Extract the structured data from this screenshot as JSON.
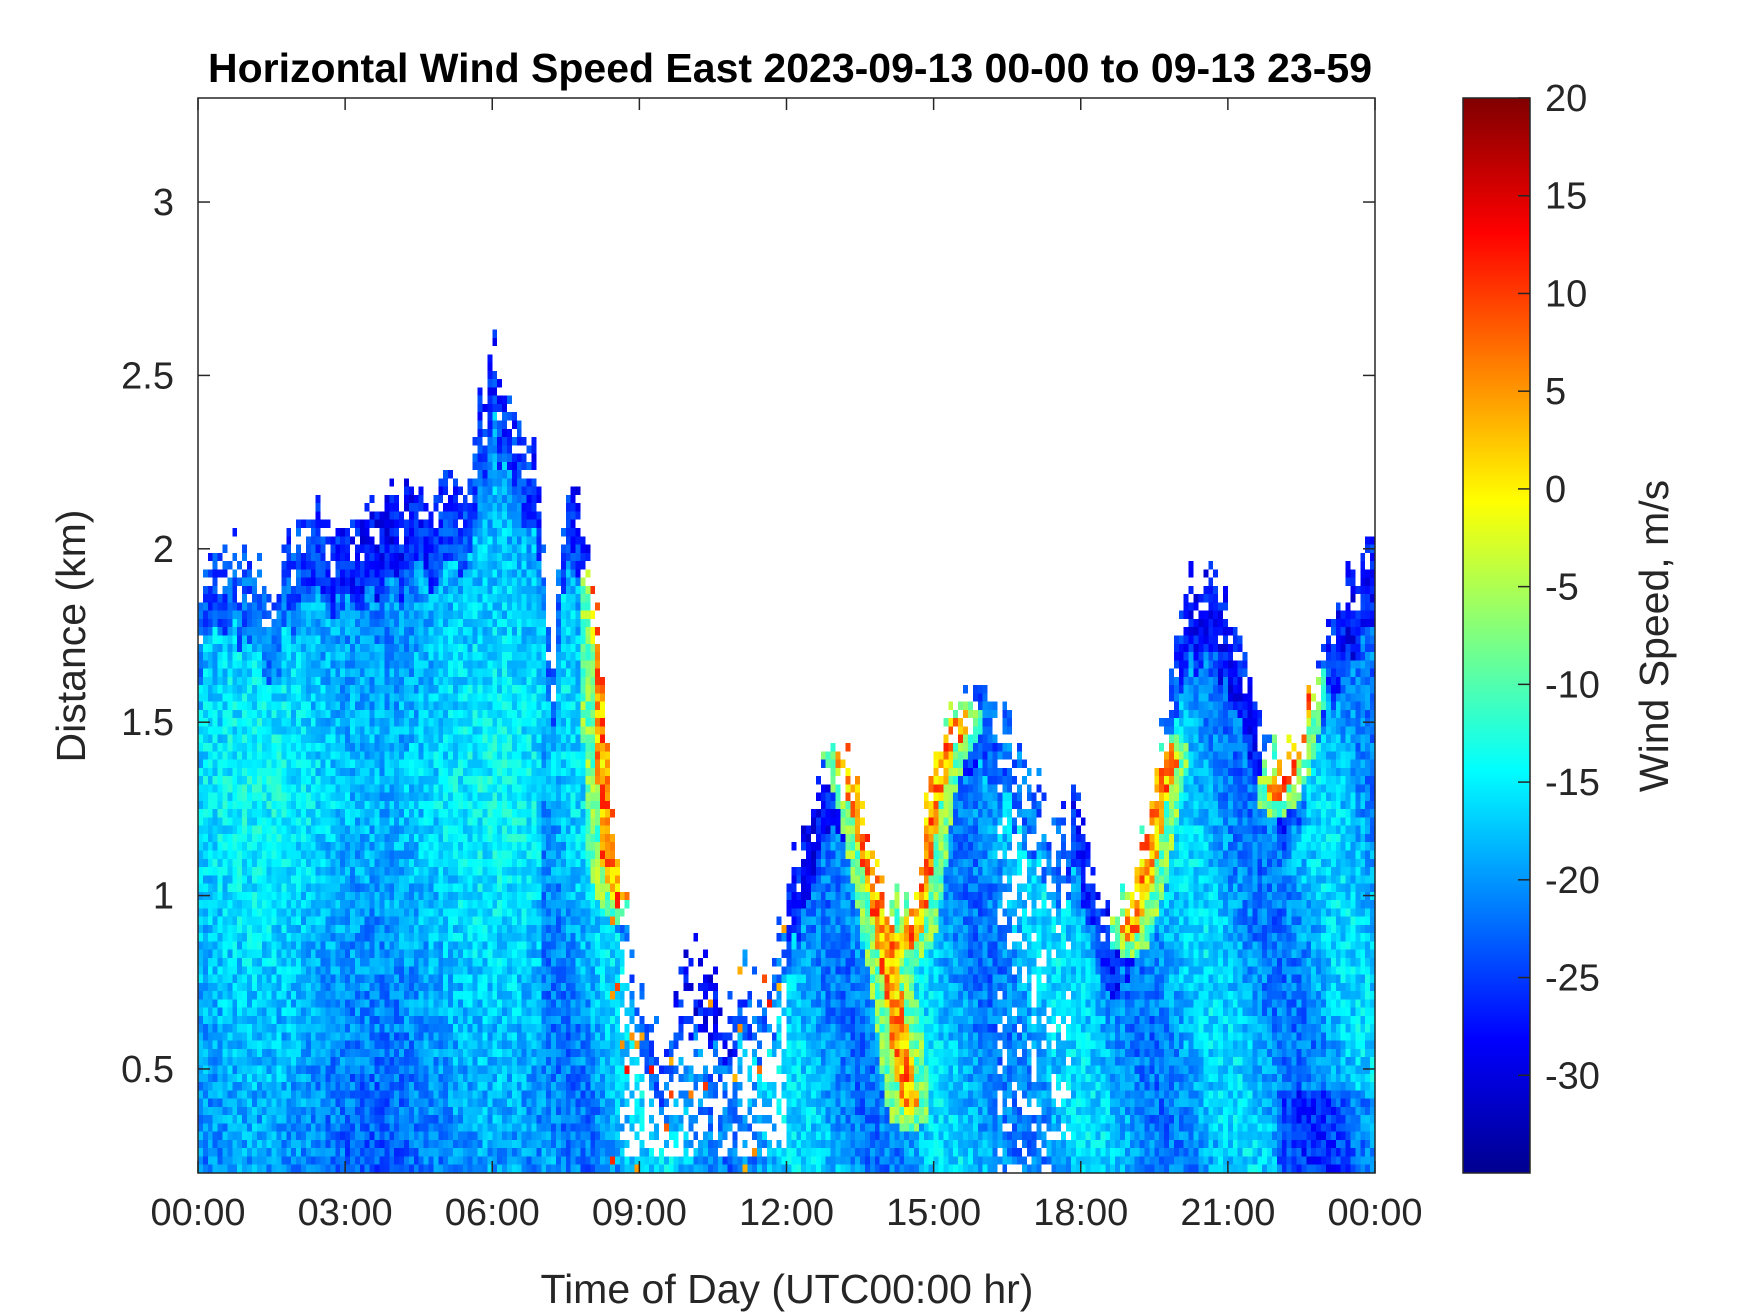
{
  "chart_data": {
    "type": "heatmap",
    "title": "Horizontal Wind Speed East 2023-09-13 00-00 to 09-13 23-59",
    "xlabel": "Time of Day (UTC00:00 hr)",
    "ylabel": "Distance (km)",
    "x_unit": "hour",
    "xlim": [
      0,
      24
    ],
    "ylim": [
      0.2,
      3.3
    ],
    "x_ticks": [
      {
        "value": 0,
        "label": "00:00"
      },
      {
        "value": 3,
        "label": "03:00"
      },
      {
        "value": 6,
        "label": "06:00"
      },
      {
        "value": 9,
        "label": "09:00"
      },
      {
        "value": 12,
        "label": "12:00"
      },
      {
        "value": 15,
        "label": "15:00"
      },
      {
        "value": 18,
        "label": "18:00"
      },
      {
        "value": 21,
        "label": "21:00"
      },
      {
        "value": 24,
        "label": "00:00"
      }
    ],
    "y_ticks": [
      {
        "value": 0.5,
        "label": "0.5"
      },
      {
        "value": 1,
        "label": "1"
      },
      {
        "value": 1.5,
        "label": "1.5"
      },
      {
        "value": 2,
        "label": "2"
      },
      {
        "value": 2.5,
        "label": "2.5"
      },
      {
        "value": 3,
        "label": "3"
      }
    ],
    "colorbar": {
      "label": "Wind Speed, m/s",
      "colormap": "jet",
      "clim": [
        -35,
        20
      ],
      "ticks": [
        20,
        15,
        10,
        5,
        0,
        -5,
        -10,
        -15,
        -20,
        -25,
        -30
      ],
      "tick_labels": [
        "20",
        "15",
        "10",
        "5",
        "0",
        "-5",
        "-10",
        "-15",
        "-20",
        "-25",
        "-30"
      ]
    },
    "grid": false,
    "missing_value_color": "#ffffff",
    "data_top_km_by_hour": [
      {
        "x": 0,
        "top": 1.9
      },
      {
        "x": 0.5,
        "top": 2.05
      },
      {
        "x": 1,
        "top": 2.0
      },
      {
        "x": 1.5,
        "top": 1.9
      },
      {
        "x": 2,
        "top": 2.05
      },
      {
        "x": 2.5,
        "top": 2.1
      },
      {
        "x": 3,
        "top": 2.1
      },
      {
        "x": 3.5,
        "top": 2.1
      },
      {
        "x": 4,
        "top": 2.15
      },
      {
        "x": 4.5,
        "top": 2.17
      },
      {
        "x": 5,
        "top": 2.17
      },
      {
        "x": 5.5,
        "top": 2.2
      },
      {
        "x": 6,
        "top": 2.6
      },
      {
        "x": 6.5,
        "top": 2.4
      },
      {
        "x": 7,
        "top": 2.2
      },
      {
        "x": 7.2,
        "top": 1.6
      },
      {
        "x": 7.5,
        "top": 2.3
      },
      {
        "x": 8,
        "top": 2.0
      },
      {
        "x": 8.3,
        "top": 1.6
      },
      {
        "x": 8.5,
        "top": 1.2
      },
      {
        "x": 9,
        "top": 0.8
      },
      {
        "x": 9.5,
        "top": 0.5
      },
      {
        "x": 10,
        "top": 0.9
      },
      {
        "x": 10.5,
        "top": 0.8
      },
      {
        "x": 11,
        "top": 0.8
      },
      {
        "x": 11.5,
        "top": 0.75
      },
      {
        "x": 12,
        "top": 1.0
      },
      {
        "x": 12.5,
        "top": 1.3
      },
      {
        "x": 13,
        "top": 1.5
      },
      {
        "x": 13.5,
        "top": 1.3
      },
      {
        "x": 14,
        "top": 1.0
      },
      {
        "x": 14.5,
        "top": 0.95
      },
      {
        "x": 15,
        "top": 1.4
      },
      {
        "x": 15.5,
        "top": 1.6
      },
      {
        "x": 16,
        "top": 1.6
      },
      {
        "x": 16.5,
        "top": 1.5
      },
      {
        "x": 17,
        "top": 1.4
      },
      {
        "x": 17.5,
        "top": 1.2
      },
      {
        "x": 18,
        "top": 1.3
      },
      {
        "x": 18.5,
        "top": 1.0
      },
      {
        "x": 19,
        "top": 1.0
      },
      {
        "x": 19.5,
        "top": 1.3
      },
      {
        "x": 20,
        "top": 1.85
      },
      {
        "x": 20.5,
        "top": 1.95
      },
      {
        "x": 21,
        "top": 1.85
      },
      {
        "x": 21.5,
        "top": 1.6
      },
      {
        "x": 22,
        "top": 1.4
      },
      {
        "x": 22.5,
        "top": 1.45
      },
      {
        "x": 23,
        "top": 1.8
      },
      {
        "x": 23.5,
        "top": 1.95
      },
      {
        "x": 24,
        "top": 2.0
      }
    ],
    "warm_shear_bands": [
      {
        "points": [
          [
            13.1,
            1.45
          ],
          [
            13.5,
            1.25
          ],
          [
            13.8,
            1.05
          ],
          [
            14.1,
            0.8
          ],
          [
            14.3,
            0.6
          ],
          [
            14.5,
            0.4
          ]
        ]
      },
      {
        "points": [
          [
            14.3,
            0.85
          ],
          [
            14.6,
            0.9
          ],
          [
            14.8,
            1.1
          ],
          [
            15.0,
            1.3
          ],
          [
            15.3,
            1.45
          ],
          [
            15.6,
            1.5
          ]
        ]
      },
      {
        "points": [
          [
            19.0,
            0.9
          ],
          [
            19.3,
            1.05
          ],
          [
            19.6,
            1.3
          ],
          [
            19.8,
            1.4
          ]
        ]
      },
      {
        "points": [
          [
            22.0,
            1.3
          ],
          [
            22.3,
            1.4
          ],
          [
            22.6,
            1.6
          ]
        ]
      },
      {
        "points": [
          [
            8.2,
            1.9
          ],
          [
            8.25,
            1.6
          ],
          [
            8.4,
            1.1
          ],
          [
            8.6,
            1.0
          ]
        ]
      }
    ]
  }
}
